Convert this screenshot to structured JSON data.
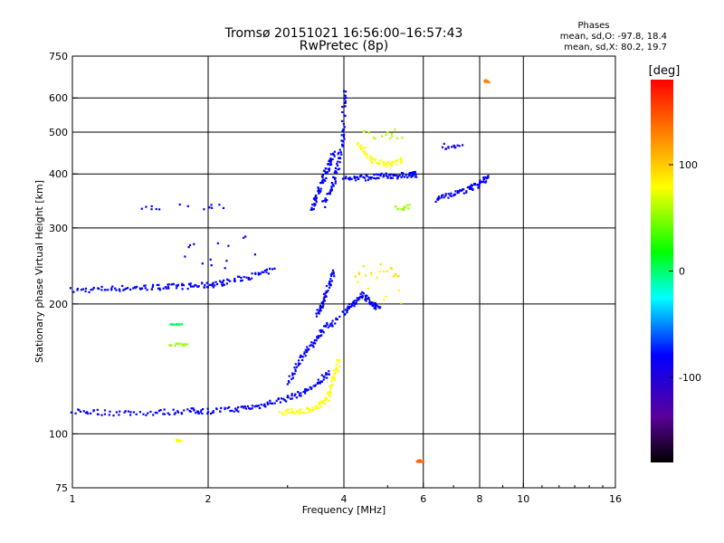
{
  "chart_data": {
    "type": "scatter",
    "title": "Tromsø 20151021 16:56:00–16:57:43",
    "subtitle": "RwPretec (8p)",
    "xlabel": "Frequency [MHz]",
    "ylabel": "Stationary phase Virtual Height [km]",
    "x_scale": "log",
    "y_scale": "log",
    "xlim": [
      1,
      16
    ],
    "ylim": [
      75,
      750
    ],
    "x_ticks": [
      1,
      2,
      4,
      6,
      8,
      10,
      16
    ],
    "y_ticks": [
      75,
      100,
      200,
      300,
      400,
      500,
      600,
      750
    ],
    "x_gridlines": [
      2,
      4,
      6,
      8,
      10
    ],
    "y_gridlines": [
      100,
      200,
      300,
      400,
      500,
      600
    ],
    "grid": true,
    "phases_title": "Phases",
    "phases_lines": [
      "mean, sd,O: -97.8, 18.4",
      "mean, sd,X:  80.2, 19.7"
    ],
    "colorbar": {
      "label": "[deg]",
      "range": [
        -180,
        180
      ],
      "ticks": [
        100,
        0,
        -100
      ],
      "placement": "right"
    },
    "traces": [
      {
        "x": [
          1.0,
          1.2,
          1.4,
          1.6,
          1.8,
          2.0,
          2.2,
          2.5,
          2.8
        ],
        "y": [
          215,
          217,
          218,
          219,
          220,
          221,
          225,
          232,
          240
        ],
        "phase": -100
      },
      {
        "x": [
          1.0,
          1.2,
          1.5,
          1.8,
          2.0,
          2.3,
          2.6,
          2.9,
          3.2,
          3.5,
          3.7
        ],
        "y": [
          113,
          112,
          112,
          113,
          113,
          114,
          116,
          120,
          124,
          130,
          140
        ],
        "phase": -100
      },
      {
        "x": [
          2.9,
          3.2,
          3.5,
          3.7,
          3.8,
          3.9
        ],
        "y": [
          112,
          113,
          115,
          122,
          135,
          148
        ],
        "phase": 100
      },
      {
        "x": [
          3.4,
          3.5,
          3.6,
          3.7,
          3.8
        ],
        "y": [
          330,
          360,
          390,
          420,
          450
        ],
        "phase": -100
      },
      {
        "x": [
          3.6,
          3.8,
          3.9,
          4.0,
          4.0
        ],
        "y": [
          340,
          380,
          430,
          500,
          640
        ],
        "phase": -100
      },
      {
        "x": [
          4.0,
          4.4,
          4.8,
          5.2,
          5.6,
          5.8
        ],
        "y": [
          390,
          392,
          395,
          396,
          398,
          400
        ],
        "phase": -100
      },
      {
        "x": [
          4.3,
          4.6,
          5.0,
          5.4
        ],
        "y": [
          470,
          430,
          420,
          430
        ],
        "phase": 100
      },
      {
        "x": [
          3.5,
          3.6,
          3.7,
          3.8
        ],
        "y": [
          190,
          200,
          220,
          240
        ],
        "phase": -100
      },
      {
        "x": [
          4.0,
          4.2,
          4.4,
          4.6,
          4.8
        ],
        "y": [
          190,
          200,
          210,
          200,
          195
        ],
        "phase": -100
      },
      {
        "x": [
          3.0,
          3.2,
          3.4,
          3.6,
          3.9
        ],
        "y": [
          130,
          150,
          160,
          175,
          185
        ],
        "phase": -100
      },
      {
        "x": [
          6.4,
          7.0,
          7.6,
          8.0,
          8.4
        ],
        "y": [
          350,
          360,
          370,
          380,
          395
        ],
        "phase": -100
      }
    ],
    "clusters": [
      {
        "x": [
          1.6,
          1.8
        ],
        "y": [
          160,
          162
        ],
        "phase": 60
      },
      {
        "x": [
          1.65,
          1.75
        ],
        "y": [
          179,
          180
        ],
        "phase": -10
      },
      {
        "x": [
          4.2,
          5.4
        ],
        "y": [
          200,
          240
        ],
        "phase": 100
      },
      {
        "x": [
          4.2,
          5.4
        ],
        "y": [
          230,
          250
        ],
        "phase": 110
      },
      {
        "x": [
          5.2,
          5.6
        ],
        "y": [
          340,
          330
        ],
        "phase": 60
      },
      {
        "x": [
          1.7,
          2.6
        ],
        "y": [
          240,
          290
        ],
        "phase": -100
      },
      {
        "x": [
          1.4,
          2.2
        ],
        "y": [
          330,
          340
        ],
        "phase": -100
      },
      {
        "x": [
          4.4,
          5.4
        ],
        "y": [
          480,
          510
        ],
        "phase": 70
      },
      {
        "x": [
          6.6,
          7.4
        ],
        "y": [
          470,
          455
        ],
        "phase": -110
      },
      {
        "x": [
          5.8,
          6.0
        ],
        "y": [
          86,
          87
        ],
        "phase": 150
      },
      {
        "x": [
          1.7,
          1.75
        ],
        "y": [
          96,
          97
        ],
        "phase": 100
      },
      {
        "x": [
          8.2,
          8.4
        ],
        "y": [
          650,
          660
        ],
        "phase": 140
      }
    ]
  }
}
